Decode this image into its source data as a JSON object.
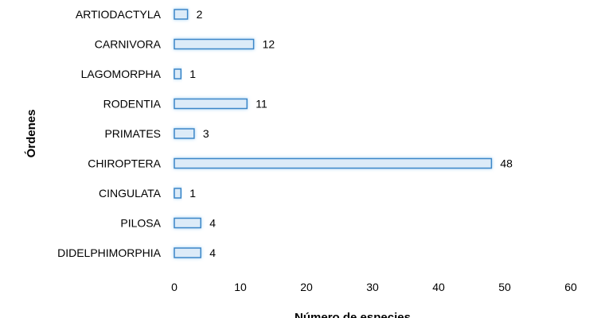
{
  "chart_data": {
    "type": "bar",
    "orientation": "horizontal",
    "categories": [
      "ARTIODACTYLA",
      "CARNIVORA",
      "LAGOMORPHA",
      "RODENTIA",
      "PRIMATES",
      "CHIROPTERA",
      "CINGULATA",
      "PILOSA",
      "DIDELPHIMORPHIA"
    ],
    "values": [
      2,
      12,
      1,
      11,
      3,
      48,
      1,
      4,
      4
    ],
    "data_labels": [
      "2",
      "12",
      "1",
      "11",
      "3",
      "48",
      "1",
      "4",
      "4"
    ],
    "xlabel": "Número de especies",
    "ylabel": "Órdenes",
    "xlim": [
      0,
      60
    ],
    "xticks": [
      0,
      10,
      20,
      30,
      40,
      50,
      60
    ],
    "xtick_labels": [
      "0",
      "10",
      "20",
      "30",
      "40",
      "50",
      "60"
    ],
    "grid": false,
    "legend": "none",
    "colors": {
      "bar_fill": "#dcebf8",
      "bar_border": "#3a86c8",
      "bar_glow": "#9fd1f5"
    }
  }
}
